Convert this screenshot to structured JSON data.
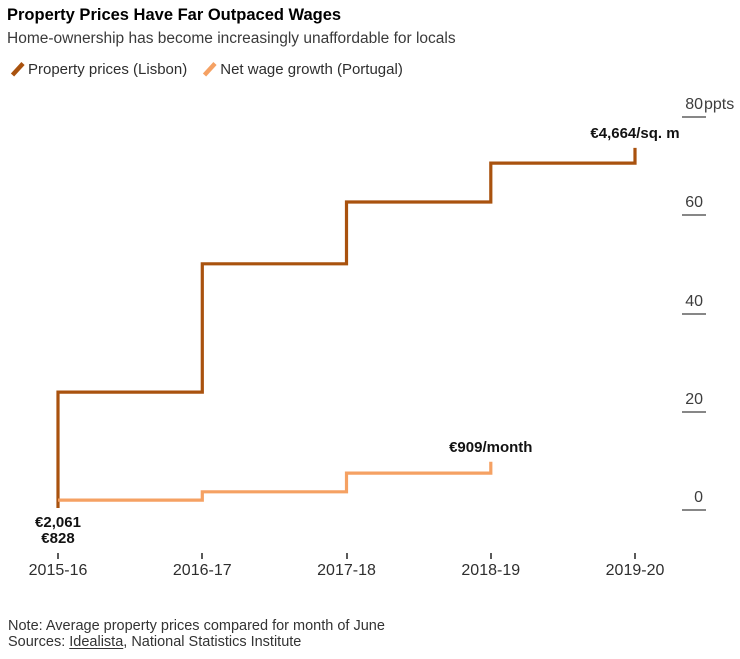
{
  "header": {
    "title": "Property Prices Have Far Outpaced Wages",
    "subtitle": "Home-ownership has become increasingly unaffordable for locals"
  },
  "legend": {
    "items": [
      {
        "label": "Property prices (Lisbon)",
        "color": "#a9520e",
        "icon": "slash-line-icon"
      },
      {
        "label": "Net wage growth (Portugal)",
        "color": "#f5a163",
        "icon": "slash-line-icon"
      }
    ]
  },
  "chart_data": {
    "type": "line",
    "subtype": "step",
    "title": "Property Prices Have Far Outpaced Wages",
    "subtitle": "Home-ownership has become increasingly unaffordable for locals",
    "unit": "ppts",
    "grid": false,
    "legend_position": "top-left",
    "y_axis_position": "right",
    "ylim": [
      0,
      80
    ],
    "x_categories": [
      "2015-16",
      "2016-17",
      "2017-18",
      "2018-19",
      "2019-20"
    ],
    "y_ticks": [
      {
        "value": 80,
        "label": "80",
        "suffix": " ppts"
      },
      {
        "value": 60,
        "label": "60",
        "suffix": ""
      },
      {
        "value": 40,
        "label": "40",
        "suffix": ""
      },
      {
        "value": 20,
        "label": "20",
        "suffix": ""
      },
      {
        "value": 0,
        "label": "0",
        "suffix": ""
      }
    ],
    "series": [
      {
        "name": "Property prices (Lisbon)",
        "color": "#a9520e",
        "start_label": "€2,061",
        "end_label": "€4,664/sq. m",
        "points": [
          [
            0,
            0
          ],
          [
            0,
            23.6
          ],
          [
            1,
            23.6
          ],
          [
            1,
            49.7
          ],
          [
            2,
            49.7
          ],
          [
            2,
            62.3
          ],
          [
            3,
            62.3
          ],
          [
            3,
            70.2
          ],
          [
            4,
            70.2
          ],
          [
            4,
            73.3
          ]
        ]
      },
      {
        "name": "Net wage growth (Portugal)",
        "color": "#f5a163",
        "start_label": "€828",
        "end_label": "€909/month",
        "points": [
          [
            0,
            1.6
          ],
          [
            1,
            1.6
          ],
          [
            1,
            3.3
          ],
          [
            2,
            3.3
          ],
          [
            2,
            7.1
          ],
          [
            3,
            7.1
          ],
          [
            3,
            9.4
          ]
        ]
      }
    ]
  },
  "footer": {
    "note": "Note: Average property prices compared for month of June",
    "sources_prefix": "Sources: ",
    "source_link": "Idealista",
    "sources_suffix": ", National Statistics Institute"
  }
}
